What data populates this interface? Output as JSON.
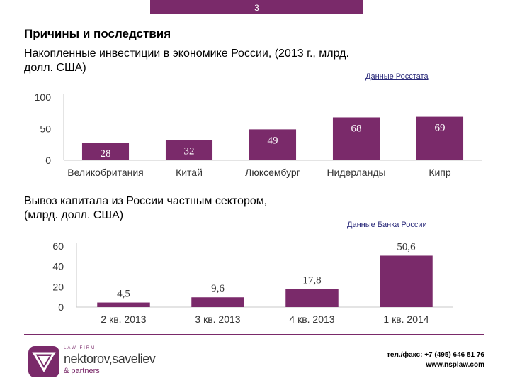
{
  "page_number": "3",
  "heading": "Причины и последствия",
  "chart_data": [
    {
      "type": "bar",
      "title_lines": [
        "Накопленные инвестиции в экономике России, (2013 г., млрд.",
        "долл. США)"
      ],
      "source": "Данные Росстата",
      "categories": [
        "Великобритания",
        "Китай",
        "Люксембург",
        "Нидерланды",
        "Кипр"
      ],
      "values": [
        28,
        32,
        49,
        68,
        69
      ],
      "value_labels": [
        "28",
        "32",
        "49",
        "68",
        "69"
      ],
      "yticks": [
        "0",
        "50",
        "100"
      ],
      "ylim": [
        0,
        100
      ],
      "bar_color": "#7a2a6a"
    },
    {
      "type": "bar",
      "title_lines": [
        "Вывоз капитала из России частным сектором,",
        "(млрд. долл. США)"
      ],
      "source": "Данные Банка России",
      "categories": [
        "2 кв. 2013",
        "3 кв. 2013",
        "4 кв. 2013",
        "1 кв. 2014"
      ],
      "values": [
        4.5,
        9.6,
        17.8,
        50.6
      ],
      "value_labels": [
        "4,5",
        "9,6",
        "17,8",
        "50,6"
      ],
      "yticks": [
        "0",
        "20",
        "40",
        "60"
      ],
      "ylim": [
        0,
        60
      ],
      "bar_color": "#7a2a6a"
    }
  ],
  "logo": {
    "tagline": "LAW FIRM",
    "name": "nektorov,saveliev",
    "sub": "& partners"
  },
  "contacts": {
    "phone": "тел./факс: +7 (495) 646 81 76",
    "website": "www.nsplaw.com"
  }
}
